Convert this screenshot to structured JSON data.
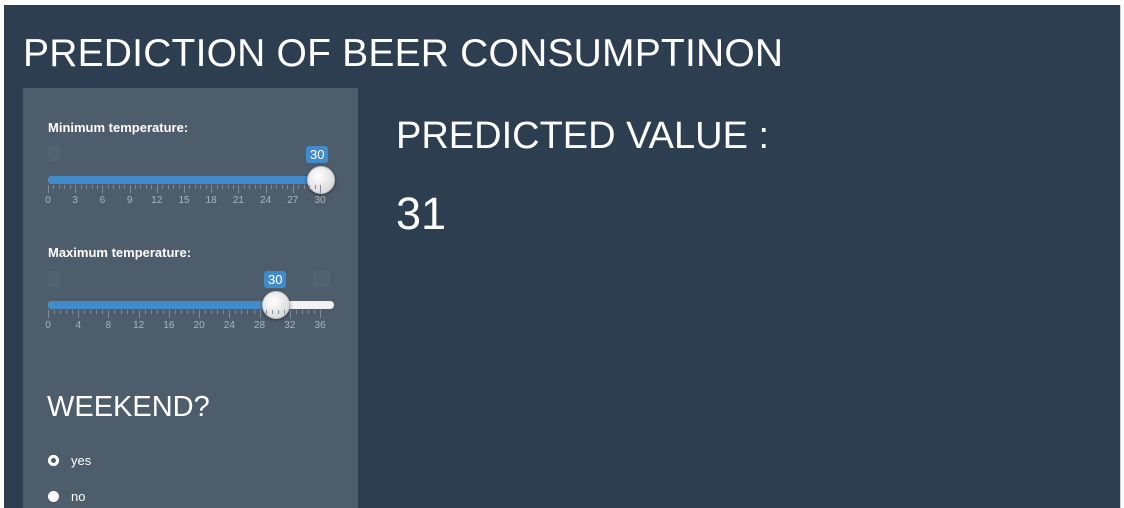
{
  "app": {
    "title": "PREDICTION OF BEER CONSUMPTINON",
    "background_color": "#2c3e50",
    "sidebar_color": "#4e5d6c",
    "accent_color": "#428bca"
  },
  "sidebar": {
    "min_temp": {
      "label": "Minimum temperature:",
      "min": 0,
      "max": 30,
      "value": 30,
      "min_label": "0",
      "value_label": "30",
      "ticks": [
        "0",
        "3",
        "6",
        "9",
        "12",
        "15",
        "18",
        "21",
        "24",
        "27",
        "30"
      ]
    },
    "max_temp": {
      "label": "Maximum temperature:",
      "min": 0,
      "max": 36,
      "value": 30,
      "min_label": "0",
      "max_label": "36",
      "value_label": "30",
      "ticks": [
        "0",
        "4",
        "8",
        "12",
        "16",
        "20",
        "24",
        "28",
        "32",
        "36"
      ]
    },
    "weekend": {
      "heading": "WEEKEND?",
      "options": [
        {
          "label": "yes",
          "selected": true
        },
        {
          "label": "no",
          "selected": false
        }
      ]
    }
  },
  "main": {
    "predicted_label": "PREDICTED VALUE :",
    "predicted_value": "31"
  }
}
